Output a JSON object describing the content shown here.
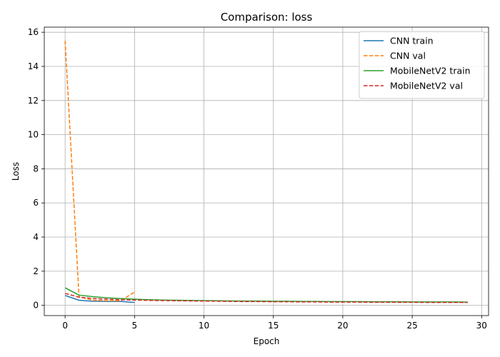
{
  "chart_data": {
    "type": "line",
    "title": "Comparison: loss",
    "xlabel": "Epoch",
    "ylabel": "Loss",
    "xlim": [
      -1.5,
      30.5
    ],
    "ylim": [
      -0.6,
      16.3
    ],
    "xticks": [
      0,
      5,
      10,
      15,
      20,
      25,
      30
    ],
    "yticks": [
      0,
      2,
      4,
      6,
      8,
      10,
      12,
      14,
      16
    ],
    "grid": true,
    "legend_position": "top-right",
    "series": [
      {
        "name": "CNN train",
        "color": "#1f77b4",
        "dash": "solid",
        "x": [
          0,
          1,
          2,
          3,
          4,
          5
        ],
        "values": [
          0.58,
          0.3,
          0.24,
          0.23,
          0.23,
          0.17
        ]
      },
      {
        "name": "CNN val",
        "color": "#ff7f0e",
        "dash": "dashed",
        "x": [
          0,
          1,
          2,
          3,
          4,
          5
        ],
        "values": [
          15.5,
          0.5,
          0.3,
          0.27,
          0.27,
          0.78
        ]
      },
      {
        "name": "MobileNetV2 train",
        "color": "#2ca02c",
        "dash": "solid",
        "x": [
          0,
          1,
          2,
          3,
          4,
          5,
          6,
          7,
          8,
          9,
          10,
          11,
          12,
          13,
          14,
          15,
          16,
          17,
          18,
          19,
          20,
          21,
          22,
          23,
          24,
          25,
          26,
          27,
          28,
          29
        ],
        "values": [
          1.03,
          0.6,
          0.51,
          0.44,
          0.4,
          0.36,
          0.33,
          0.31,
          0.3,
          0.29,
          0.28,
          0.27,
          0.26,
          0.25,
          0.25,
          0.24,
          0.24,
          0.23,
          0.23,
          0.22,
          0.22,
          0.22,
          0.21,
          0.21,
          0.21,
          0.2,
          0.2,
          0.2,
          0.2,
          0.19
        ]
      },
      {
        "name": "MobileNetV2 val",
        "color": "#d62728",
        "dash": "dashed",
        "x": [
          0,
          1,
          2,
          3,
          4,
          5,
          6,
          7,
          8,
          9,
          10,
          11,
          12,
          13,
          14,
          15,
          16,
          17,
          18,
          19,
          20,
          21,
          22,
          23,
          24,
          25,
          26,
          27,
          28,
          29
        ],
        "values": [
          0.7,
          0.48,
          0.4,
          0.36,
          0.33,
          0.31,
          0.29,
          0.28,
          0.27,
          0.26,
          0.25,
          0.24,
          0.23,
          0.22,
          0.22,
          0.21,
          0.21,
          0.2,
          0.2,
          0.19,
          0.19,
          0.19,
          0.18,
          0.18,
          0.18,
          0.18,
          0.17,
          0.17,
          0.17,
          0.17
        ]
      }
    ]
  }
}
